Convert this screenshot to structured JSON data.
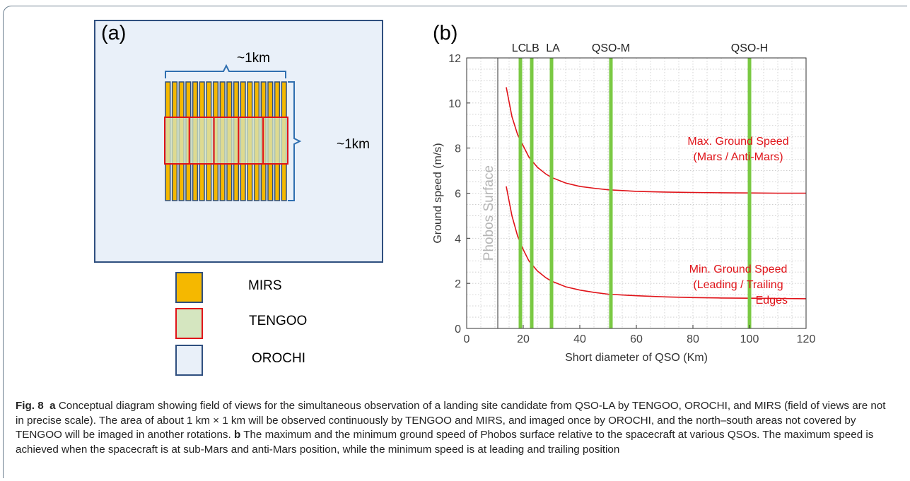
{
  "figure": {
    "panel_a": {
      "label": "(a)",
      "width_label": "~1km",
      "height_label": "~1km",
      "legend": [
        {
          "name": "MIRS",
          "fill": "#f5b800",
          "stroke": "#2f4f7f"
        },
        {
          "name": "TENGOO",
          "fill": "#d5e6c0",
          "stroke": "#e0141a"
        },
        {
          "name": "OROCHI",
          "fill": "#e9f0f9",
          "stroke": "#2f4f7f"
        }
      ],
      "colors": {
        "orochi_bg": "#e9f0f9",
        "orochi_border": "#2f4f7f",
        "mirs_fill": "#f5b800",
        "tengoo_border": "#e0141a",
        "tengoo_fill": "#d5e6c0"
      }
    },
    "panel_b": {
      "label": "(b)",
      "surface_label": "Phobos Surface"
    },
    "caption": {
      "fig_label": "Fig. 8",
      "a_marker": "a",
      "a_text": "Conceptual diagram showing field of views for the simultaneous observation of a landing site candidate from QSO-LA by TENGOO, OROCHI, and MIRS (field of views are not in precise scale). The area of about 1 km × 1 km will be observed continuously by TENGOO and MIRS, and imaged once by OROCHI, and the north–south areas not covered by TENGOO will be imaged in another rotations.",
      "b_marker": "b",
      "b_text": "The maximum and the minimum ground speed of Phobos surface relative to the spacecraft at various QSOs. The maximum speed is achieved when the spacecraft is at sub-Mars and anti-Mars position, while the minimum speed is at leading and trailing position"
    }
  },
  "chart_data": {
    "type": "line",
    "xlabel": "Short diameter of QSO (Km)",
    "ylabel": "Ground speed (m/s)",
    "xlim": [
      0,
      120
    ],
    "ylim": [
      0,
      12
    ],
    "xticks": [
      0,
      20,
      40,
      60,
      80,
      100,
      120
    ],
    "yticks": [
      0,
      2,
      4,
      6,
      8,
      10,
      12
    ],
    "grid": true,
    "phobos_surface_x": 11,
    "orbits": [
      {
        "name": "LC",
        "x": 19
      },
      {
        "name": "LB",
        "x": 23
      },
      {
        "name": "LA",
        "x": 30
      },
      {
        "name": "QSO-M",
        "x": 51
      },
      {
        "name": "QSO-H",
        "x": 100
      }
    ],
    "orbit_color": "#7ac943",
    "series": [
      {
        "name": "Max. Ground Speed\n(Mars / Anti-Mars)",
        "label_lines": [
          "Max. Ground Speed",
          "(Mars / Anti-Mars)"
        ],
        "color": "#e0141a",
        "x": [
          14,
          16,
          18,
          20,
          22,
          25,
          28,
          30,
          35,
          40,
          45,
          50,
          60,
          70,
          80,
          90,
          100,
          110,
          120
        ],
        "y": [
          10.7,
          9.4,
          8.6,
          8.1,
          7.6,
          7.15,
          6.85,
          6.7,
          6.45,
          6.3,
          6.22,
          6.15,
          6.08,
          6.05,
          6.03,
          6.02,
          6.01,
          6.0,
          6.0
        ]
      },
      {
        "name": "Min. Ground Speed\n(Leading / Trailing\nEdges",
        "label_lines": [
          "Min. Ground Speed",
          "(Leading / Trailing",
          "Edges"
        ],
        "color": "#e0141a",
        "x": [
          14,
          16,
          18,
          20,
          22,
          25,
          28,
          30,
          35,
          40,
          45,
          50,
          60,
          70,
          80,
          90,
          100,
          110,
          120
        ],
        "y": [
          6.3,
          5.0,
          4.1,
          3.5,
          3.0,
          2.55,
          2.25,
          2.1,
          1.85,
          1.7,
          1.6,
          1.52,
          1.45,
          1.4,
          1.37,
          1.35,
          1.34,
          1.33,
          1.32
        ]
      }
    ]
  }
}
